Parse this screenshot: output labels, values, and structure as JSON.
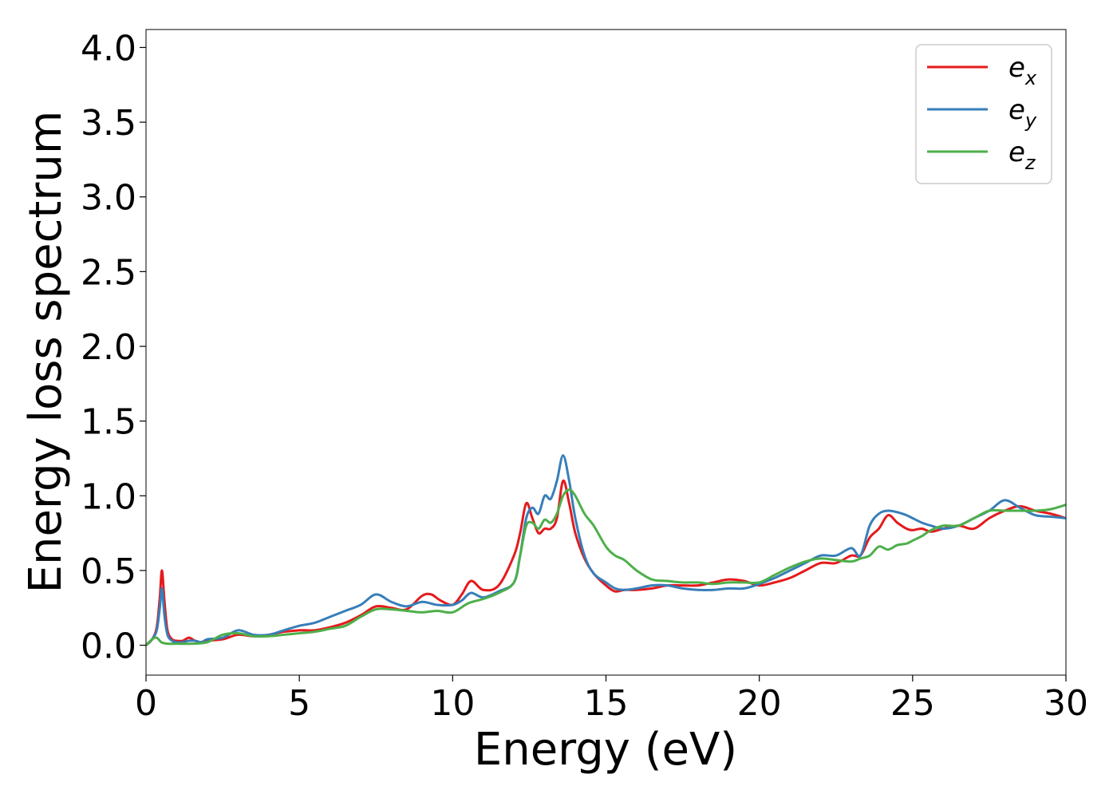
{
  "chart_data": {
    "type": "line",
    "title": "",
    "xlabel": "Energy (eV)",
    "ylabel": "Energy loss spectrum",
    "xlim": [
      0,
      30
    ],
    "ylim": [
      -0.2,
      4.12
    ],
    "xticks": [
      0,
      5,
      10,
      15,
      20,
      25,
      30
    ],
    "yticks": [
      0.0,
      0.5,
      1.0,
      1.5,
      2.0,
      2.5,
      3.0,
      3.5,
      4.0
    ],
    "grid": false,
    "legend_position": "top-right",
    "series": [
      {
        "name": "e_x",
        "base": "e",
        "sub": "x",
        "color": "#e41a1c",
        "x": [
          0,
          0.2,
          0.35,
          0.45,
          0.52,
          0.6,
          0.7,
          0.85,
          1.0,
          1.2,
          1.4,
          1.6,
          1.8,
          2.0,
          2.5,
          3.0,
          3.5,
          4.0,
          4.5,
          5.0,
          5.5,
          6.0,
          6.5,
          7.0,
          7.5,
          8.0,
          8.5,
          9.0,
          9.3,
          9.6,
          10.0,
          10.3,
          10.6,
          11.0,
          11.5,
          12.0,
          12.2,
          12.4,
          12.6,
          12.8,
          13.0,
          13.2,
          13.4,
          13.6,
          13.8,
          14.0,
          14.3,
          14.6,
          15.0,
          15.3,
          15.6,
          16.0,
          16.5,
          17.0,
          17.5,
          18.0,
          18.5,
          19.0,
          19.5,
          20.0,
          20.5,
          21.0,
          21.5,
          22.0,
          22.5,
          23.0,
          23.3,
          23.6,
          23.9,
          24.2,
          24.5,
          24.8,
          25.0,
          25.3,
          25.6,
          26.0,
          26.5,
          27.0,
          27.5,
          28.0,
          28.5,
          29.0,
          29.5,
          30.0
        ],
        "y": [
          0.0,
          0.04,
          0.12,
          0.32,
          0.5,
          0.3,
          0.1,
          0.04,
          0.03,
          0.03,
          0.05,
          0.03,
          0.02,
          0.03,
          0.04,
          0.07,
          0.06,
          0.07,
          0.09,
          0.1,
          0.1,
          0.12,
          0.15,
          0.2,
          0.26,
          0.25,
          0.24,
          0.33,
          0.34,
          0.3,
          0.27,
          0.34,
          0.43,
          0.37,
          0.4,
          0.6,
          0.75,
          0.95,
          0.85,
          0.75,
          0.78,
          0.78,
          0.85,
          1.1,
          0.95,
          0.75,
          0.58,
          0.48,
          0.4,
          0.36,
          0.37,
          0.37,
          0.38,
          0.4,
          0.4,
          0.4,
          0.42,
          0.44,
          0.43,
          0.4,
          0.42,
          0.45,
          0.5,
          0.55,
          0.55,
          0.6,
          0.6,
          0.72,
          0.78,
          0.87,
          0.82,
          0.78,
          0.77,
          0.78,
          0.76,
          0.78,
          0.8,
          0.78,
          0.85,
          0.9,
          0.93,
          0.9,
          0.88,
          0.85
        ]
      },
      {
        "name": "e_y",
        "base": "e",
        "sub": "y",
        "color": "#377eb8",
        "x": [
          0,
          0.2,
          0.35,
          0.45,
          0.52,
          0.6,
          0.7,
          0.85,
          1.0,
          1.2,
          1.4,
          1.6,
          1.8,
          2.0,
          2.5,
          3.0,
          3.5,
          4.0,
          4.5,
          5.0,
          5.5,
          6.0,
          6.5,
          7.0,
          7.5,
          8.0,
          8.5,
          9.0,
          9.5,
          10.0,
          10.3,
          10.6,
          11.0,
          11.5,
          12.0,
          12.2,
          12.4,
          12.6,
          12.8,
          13.0,
          13.2,
          13.4,
          13.6,
          13.8,
          14.0,
          14.3,
          14.6,
          15.0,
          15.3,
          15.6,
          16.0,
          16.5,
          17.0,
          17.5,
          18.0,
          18.5,
          19.0,
          19.5,
          20.0,
          20.5,
          21.0,
          21.5,
          22.0,
          22.5,
          23.0,
          23.3,
          23.6,
          23.9,
          24.2,
          24.5,
          24.8,
          25.0,
          25.3,
          25.6,
          26.0,
          26.5,
          27.0,
          27.5,
          28.0,
          28.5,
          29.0,
          29.5,
          30.0
        ],
        "y": [
          0.0,
          0.04,
          0.1,
          0.25,
          0.38,
          0.2,
          0.07,
          0.03,
          0.02,
          0.02,
          0.03,
          0.03,
          0.02,
          0.04,
          0.05,
          0.1,
          0.07,
          0.07,
          0.1,
          0.13,
          0.15,
          0.19,
          0.23,
          0.27,
          0.34,
          0.29,
          0.26,
          0.29,
          0.27,
          0.27,
          0.3,
          0.35,
          0.32,
          0.36,
          0.42,
          0.6,
          0.85,
          0.92,
          0.88,
          1.0,
          0.98,
          1.1,
          1.27,
          1.1,
          0.85,
          0.6,
          0.48,
          0.42,
          0.38,
          0.37,
          0.38,
          0.4,
          0.4,
          0.38,
          0.37,
          0.37,
          0.38,
          0.38,
          0.41,
          0.45,
          0.5,
          0.55,
          0.6,
          0.6,
          0.65,
          0.6,
          0.8,
          0.88,
          0.9,
          0.89,
          0.87,
          0.85,
          0.82,
          0.8,
          0.78,
          0.8,
          0.85,
          0.9,
          0.97,
          0.92,
          0.87,
          0.86,
          0.85
        ]
      },
      {
        "name": "e_z",
        "base": "e",
        "sub": "z",
        "color": "#4daf4a",
        "x": [
          0,
          0.2,
          0.35,
          0.5,
          0.7,
          1.0,
          1.5,
          2.0,
          2.5,
          3.0,
          3.5,
          4.0,
          4.5,
          5.0,
          5.5,
          6.0,
          6.5,
          7.0,
          7.5,
          8.0,
          8.5,
          9.0,
          9.5,
          10.0,
          10.5,
          11.0,
          11.5,
          12.0,
          12.2,
          12.4,
          12.6,
          12.8,
          13.0,
          13.2,
          13.4,
          13.6,
          13.8,
          14.0,
          14.3,
          14.6,
          15.0,
          15.3,
          15.6,
          16.0,
          16.5,
          17.0,
          17.5,
          18.0,
          18.5,
          19.0,
          19.5,
          20.0,
          20.5,
          21.0,
          21.5,
          22.0,
          22.5,
          23.0,
          23.3,
          23.6,
          23.9,
          24.2,
          24.5,
          24.8,
          25.0,
          25.3,
          25.6,
          26.0,
          26.5,
          27.0,
          27.5,
          28.0,
          28.5,
          29.0,
          29.5,
          30.0
        ],
        "y": [
          0.0,
          0.04,
          0.05,
          0.02,
          0.01,
          0.01,
          0.01,
          0.02,
          0.07,
          0.08,
          0.06,
          0.06,
          0.07,
          0.08,
          0.09,
          0.11,
          0.13,
          0.19,
          0.24,
          0.24,
          0.23,
          0.22,
          0.23,
          0.22,
          0.28,
          0.31,
          0.35,
          0.42,
          0.6,
          0.8,
          0.82,
          0.78,
          0.84,
          0.82,
          0.88,
          1.0,
          1.04,
          1.0,
          0.88,
          0.8,
          0.66,
          0.6,
          0.57,
          0.5,
          0.44,
          0.43,
          0.42,
          0.42,
          0.41,
          0.42,
          0.42,
          0.42,
          0.47,
          0.52,
          0.56,
          0.58,
          0.57,
          0.56,
          0.58,
          0.6,
          0.66,
          0.64,
          0.67,
          0.68,
          0.7,
          0.73,
          0.77,
          0.8,
          0.8,
          0.85,
          0.9,
          0.9,
          0.9,
          0.9,
          0.91,
          0.94
        ]
      }
    ]
  }
}
